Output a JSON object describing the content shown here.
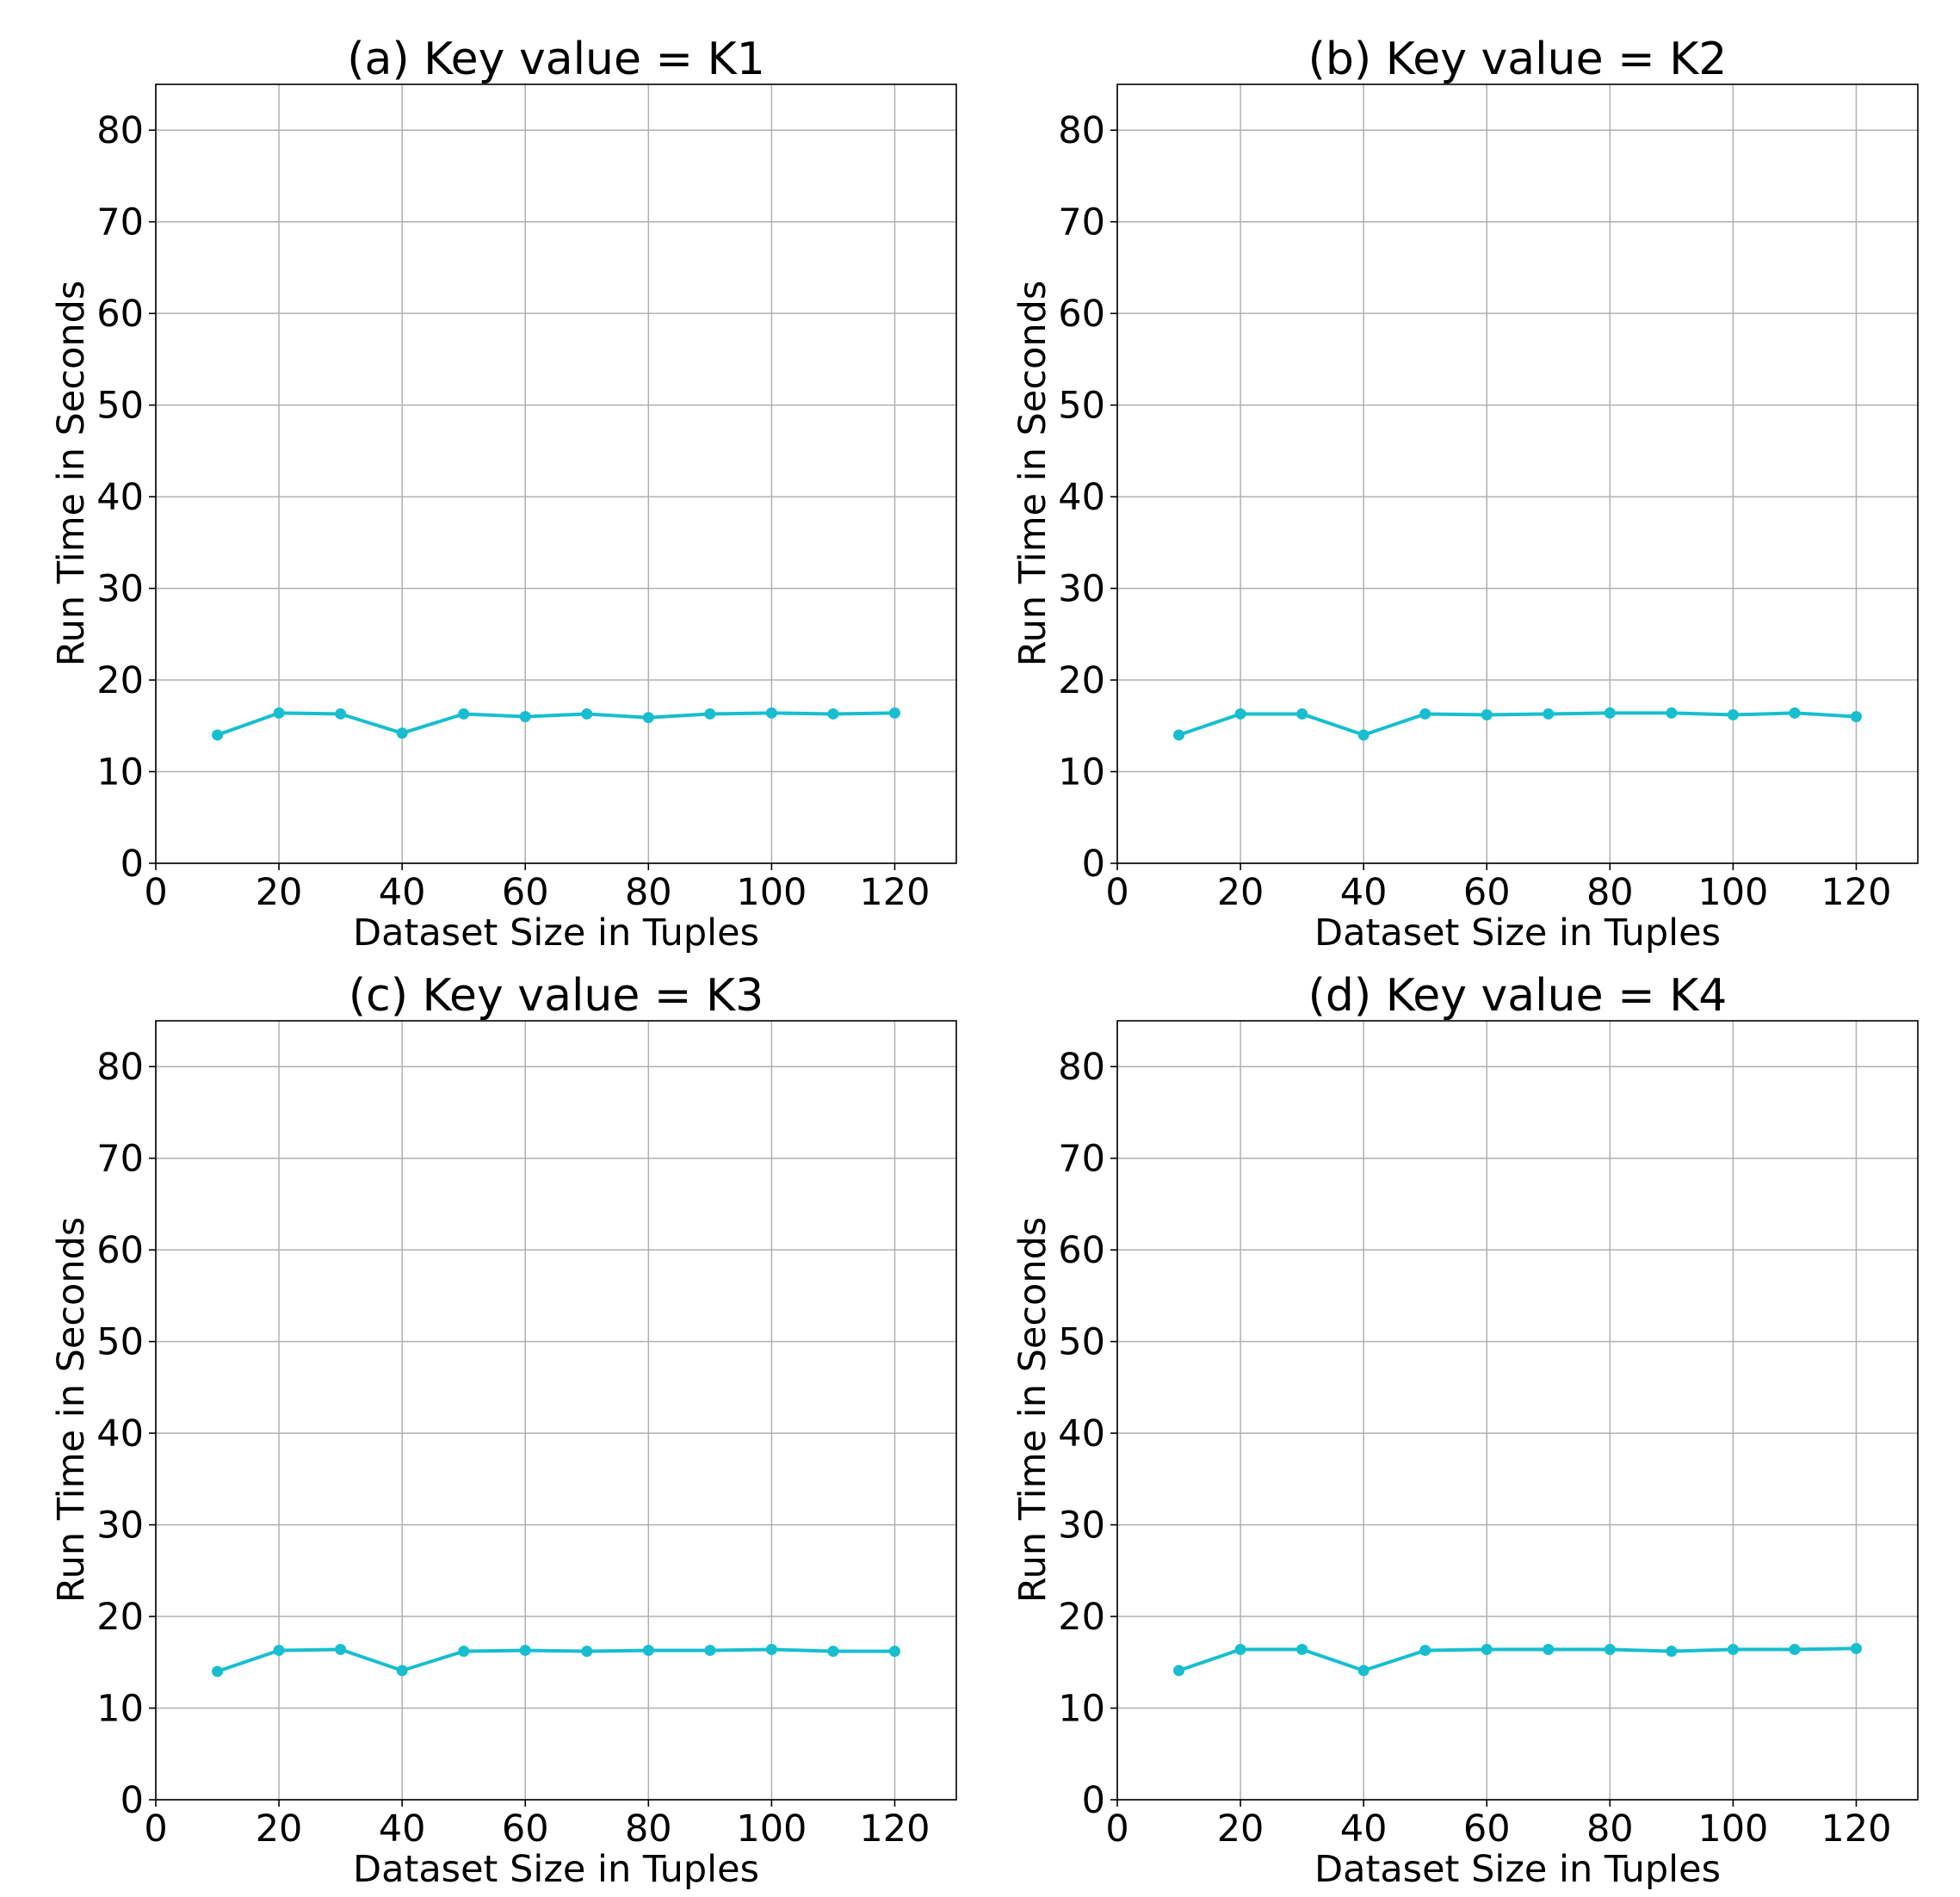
{
  "chart_data": [
    {
      "type": "line",
      "title": "(a) Key value = K1",
      "xlabel": "Dataset Size in Tuples",
      "ylabel": "Run Time in Seconds",
      "xlim": [
        0,
        130
      ],
      "ylim": [
        0,
        85
      ],
      "xticks": [
        "0",
        "20",
        "40",
        "60",
        "80",
        "100",
        "120"
      ],
      "yticks": [
        "0",
        "10",
        "20",
        "30",
        "40",
        "50",
        "60",
        "70",
        "80"
      ],
      "grid": true,
      "color": "#17becf",
      "x": [
        10,
        20,
        30,
        40,
        50,
        60,
        70,
        80,
        90,
        100,
        110,
        120
      ],
      "y": [
        14.0,
        16.4,
        16.3,
        14.2,
        16.3,
        16.0,
        16.3,
        15.9,
        16.3,
        16.4,
        16.3,
        16.4
      ]
    },
    {
      "type": "line",
      "title": "(b) Key value = K2",
      "xlabel": "Dataset Size in Tuples",
      "ylabel": "Run Time in Seconds",
      "xlim": [
        0,
        130
      ],
      "ylim": [
        0,
        85
      ],
      "xticks": [
        "0",
        "20",
        "40",
        "60",
        "80",
        "100",
        "120"
      ],
      "yticks": [
        "0",
        "10",
        "20",
        "30",
        "40",
        "50",
        "60",
        "70",
        "80"
      ],
      "grid": true,
      "color": "#17becf",
      "x": [
        10,
        20,
        30,
        40,
        50,
        60,
        70,
        80,
        90,
        100,
        110,
        120
      ],
      "y": [
        14.0,
        16.3,
        16.3,
        14.0,
        16.3,
        16.2,
        16.3,
        16.4,
        16.4,
        16.2,
        16.4,
        16.0
      ]
    },
    {
      "type": "line",
      "title": "(c) Key value = K3",
      "xlabel": "Dataset Size in Tuples",
      "ylabel": "Run Time in Seconds",
      "xlim": [
        0,
        130
      ],
      "ylim": [
        0,
        85
      ],
      "xticks": [
        "0",
        "20",
        "40",
        "60",
        "80",
        "100",
        "120"
      ],
      "yticks": [
        "0",
        "10",
        "20",
        "30",
        "40",
        "50",
        "60",
        "70",
        "80"
      ],
      "grid": true,
      "color": "#17becf",
      "x": [
        10,
        20,
        30,
        40,
        50,
        60,
        70,
        80,
        90,
        100,
        110,
        120
      ],
      "y": [
        14.0,
        16.3,
        16.4,
        14.1,
        16.2,
        16.3,
        16.2,
        16.3,
        16.3,
        16.4,
        16.2,
        16.2
      ]
    },
    {
      "type": "line",
      "title": "(d) Key value = K4",
      "xlabel": "Dataset Size in Tuples",
      "ylabel": "Run Time in Seconds",
      "xlim": [
        0,
        130
      ],
      "ylim": [
        0,
        85
      ],
      "xticks": [
        "0",
        "20",
        "40",
        "60",
        "80",
        "100",
        "120"
      ],
      "yticks": [
        "0",
        "10",
        "20",
        "30",
        "40",
        "50",
        "60",
        "70",
        "80"
      ],
      "grid": true,
      "color": "#17becf",
      "x": [
        10,
        20,
        30,
        40,
        50,
        60,
        70,
        80,
        90,
        100,
        110,
        120
      ],
      "y": [
        14.1,
        16.4,
        16.4,
        14.1,
        16.3,
        16.4,
        16.4,
        16.4,
        16.2,
        16.4,
        16.4,
        16.5
      ]
    }
  ]
}
